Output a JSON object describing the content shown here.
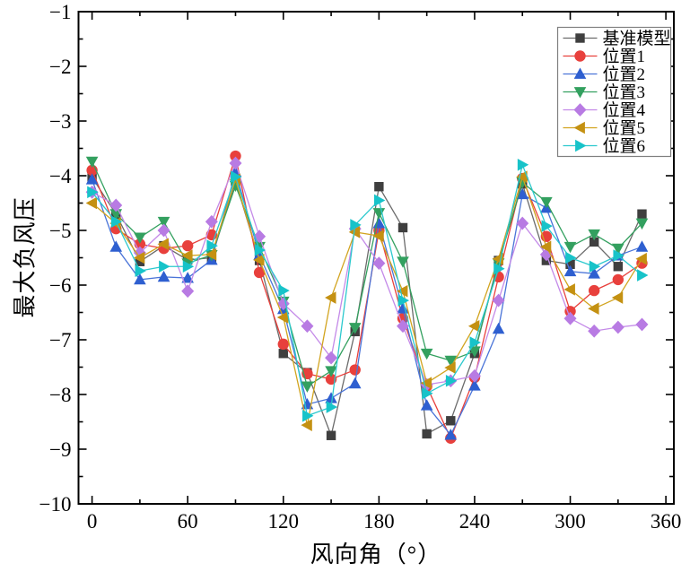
{
  "figure": {
    "background": "#ffffff",
    "frame_color": "#000000"
  },
  "chart_data": {
    "type": "line",
    "title": "",
    "xlabel": "风向角（°）",
    "ylabel": "最大负风压",
    "xlim": [
      -8.5,
      365
    ],
    "ylim": [
      -10,
      -1
    ],
    "grid": false,
    "legend_position": "top-right",
    "x_major_ticks": [
      0,
      60,
      120,
      180,
      240,
      300,
      360
    ],
    "x_tick_labels": [
      "0",
      "60",
      "120",
      "180",
      "240",
      "300",
      "360"
    ],
    "x_minor_ticks": [
      30,
      90,
      150,
      210,
      270,
      330
    ],
    "y_major_ticks": [
      -1,
      -2,
      -3,
      -4,
      -5,
      -6,
      -7,
      -8,
      -9,
      -10
    ],
    "y_tick_labels": [
      "−1",
      "−2",
      "−3",
      "−4",
      "−5",
      "−6",
      "−7",
      "−8",
      "−9",
      "−10"
    ],
    "y_minor_ticks": [
      -1.5,
      -2.5,
      -3.5,
      -4.5,
      -5.5,
      -6.5,
      -7.5,
      -8.5,
      -9.5
    ],
    "x": [
      0,
      15,
      30,
      45,
      60,
      75,
      90,
      105,
      120,
      135,
      150,
      165,
      180,
      195,
      210,
      225,
      240,
      255,
      270,
      285,
      300,
      315,
      330,
      345
    ],
    "series": [
      {
        "name": "基准模型",
        "marker": "square",
        "color": "#3f3f3f",
        "line_color": "#6b6b6b",
        "values": [
          -4.03,
          -4.7,
          -5.57,
          -5.28,
          -5.54,
          -5.5,
          -4.1,
          -5.55,
          -7.25,
          -7.6,
          -8.75,
          -6.85,
          -4.2,
          -4.95,
          -8.72,
          -8.48,
          -7.25,
          -5.55,
          -4.15,
          -5.55,
          -5.62,
          -5.21,
          -5.66,
          -4.7
        ]
      },
      {
        "name": "位置1",
        "marker": "circle",
        "color": "#e8403c",
        "line_color": "#e8403c",
        "values": [
          -3.9,
          -4.97,
          -5.25,
          -5.33,
          -5.28,
          -5.08,
          -3.64,
          -5.77,
          -7.08,
          -7.62,
          -7.72,
          -7.55,
          -5.0,
          -6.61,
          -7.85,
          -8.8,
          -7.69,
          -5.85,
          -4.05,
          -5.11,
          -6.48,
          -6.1,
          -5.9,
          -5.6
        ]
      },
      {
        "name": "位置2",
        "marker": "triangle-up",
        "color": "#2e5fd0",
        "line_color": "#4a74d8",
        "values": [
          -4.07,
          -5.3,
          -5.9,
          -5.85,
          -5.87,
          -5.54,
          -3.93,
          -5.45,
          -6.44,
          -8.18,
          -8.07,
          -7.8,
          -4.87,
          -6.43,
          -8.2,
          -8.74,
          -7.84,
          -6.8,
          -4.34,
          -4.59,
          -5.75,
          -5.79,
          -5.46,
          -5.3
        ]
      },
      {
        "name": "位置3",
        "marker": "triangle-down",
        "color": "#33a05f",
        "line_color": "#33a05f",
        "values": [
          -3.74,
          -4.7,
          -5.13,
          -4.84,
          -5.6,
          -5.45,
          -4.18,
          -5.3,
          -6.3,
          -7.85,
          -7.57,
          -6.78,
          -4.68,
          -5.57,
          -7.25,
          -7.38,
          -7.21,
          -5.6,
          -4.12,
          -4.48,
          -5.3,
          -5.07,
          -5.33,
          -4.87
        ]
      },
      {
        "name": "位置4",
        "marker": "diamond",
        "color": "#b87be3",
        "line_color": "#c48ae8",
        "values": [
          -4.3,
          -4.54,
          -5.41,
          -5.0,
          -6.11,
          -4.84,
          -3.77,
          -5.11,
          -6.34,
          -6.75,
          -7.33,
          -4.97,
          -5.6,
          -6.75,
          -7.82,
          -7.75,
          -7.66,
          -6.28,
          -4.87,
          -5.44,
          -6.61,
          -6.84,
          -6.77,
          -6.72
        ]
      },
      {
        "name": "位置5",
        "marker": "triangle-left",
        "color": "#c49112",
        "line_color": "#d2a41f",
        "values": [
          -4.5,
          -4.87,
          -5.5,
          -5.25,
          -5.46,
          -5.44,
          -4.07,
          -5.54,
          -6.59,
          -8.56,
          -6.23,
          -5.03,
          -5.1,
          -6.11,
          -7.79,
          -7.51,
          -6.75,
          -5.52,
          -4.02,
          -5.3,
          -6.08,
          -6.43,
          -6.23,
          -5.52
        ]
      },
      {
        "name": "位置6",
        "marker": "triangle-right",
        "color": "#17c3c9",
        "line_color": "#2cc9ce",
        "values": [
          -4.3,
          -4.84,
          -5.74,
          -5.66,
          -5.66,
          -5.28,
          -4.02,
          -5.36,
          -6.1,
          -8.39,
          -8.23,
          -4.9,
          -4.45,
          -6.28,
          -7.98,
          -7.75,
          -7.05,
          -5.7,
          -3.8,
          -4.92,
          -5.5,
          -5.66,
          -5.46,
          -5.82
        ]
      }
    ]
  }
}
